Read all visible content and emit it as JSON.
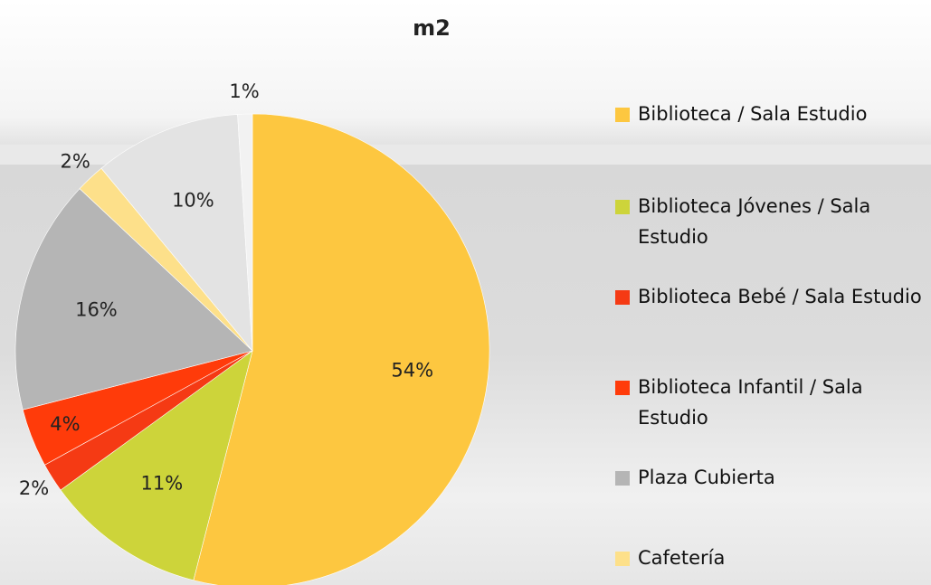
{
  "chart_data": {
    "type": "pie",
    "title": "m2",
    "categories": [
      "Biblioteca / Sala Estudio",
      "Biblioteca Jóvenes / Sala Estudio",
      "Biblioteca Bebé / Sala Estudio",
      "Biblioteca Infantil / Sala Estudio",
      "Plaza Cubierta",
      "Cafetería",
      null,
      null
    ],
    "values": [
      54,
      11,
      2,
      4,
      16,
      2,
      10,
      1
    ],
    "value_labels": [
      "54%",
      "11%",
      "2%",
      "4%",
      "16%",
      "2%",
      "10%",
      "1%"
    ],
    "colors": [
      "#fdc740",
      "#cdd43a",
      "#f53a14",
      "#ff3b0a",
      "#b5b5b5",
      "#fde08a",
      "#e3e3e3",
      "#f2f2f2"
    ],
    "legend": "right"
  }
}
